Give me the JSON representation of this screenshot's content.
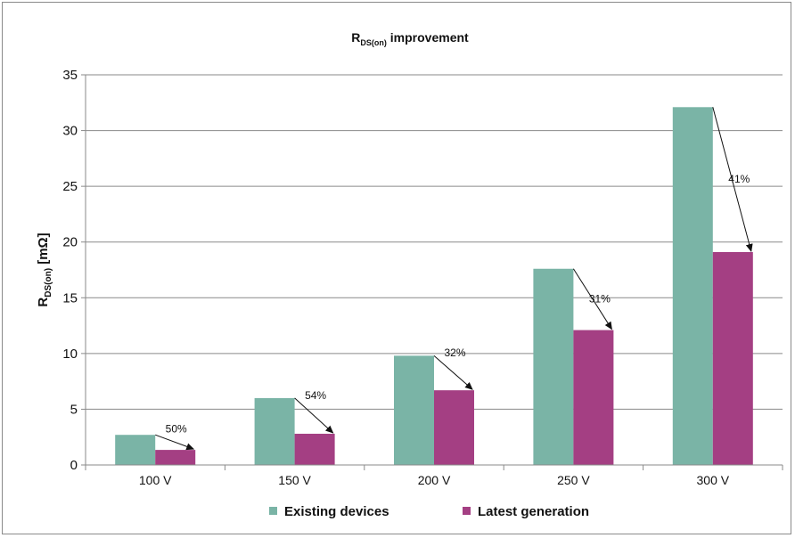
{
  "chart_data": {
    "type": "bar",
    "title": {
      "main": "R",
      "sub": "DS(on)",
      "rest": " improvement"
    },
    "ylabel": {
      "main": "R",
      "sub": "DS(on)",
      "rest": "  [mΩ]"
    },
    "xlabel": "",
    "categories": [
      "100 V",
      "150 V",
      "200 V",
      "250 V",
      "300 V"
    ],
    "series": [
      {
        "name": "Existing devices",
        "color": "#7ab4a6",
        "values": [
          2.7,
          6.0,
          9.8,
          17.6,
          32.1
        ]
      },
      {
        "name": "Latest generation",
        "color": "#a43f83",
        "values": [
          1.35,
          2.8,
          6.7,
          12.1,
          19.1
        ]
      }
    ],
    "annotations": [
      "50%",
      "54%",
      "32%",
      "31%",
      "41%"
    ],
    "ylim": [
      0,
      35
    ],
    "yticks": [
      0,
      5,
      10,
      15,
      20,
      25,
      30,
      35
    ],
    "grid": true,
    "legend": "bottom"
  }
}
